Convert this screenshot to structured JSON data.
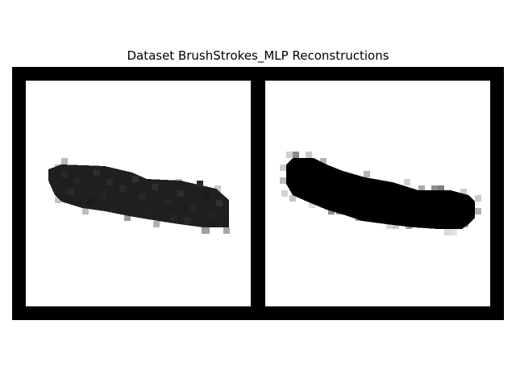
{
  "figure": {
    "title": "Dataset BrushStrokes_MLP Reconstructions"
  },
  "panels": [
    {
      "id": "original"
    },
    {
      "id": "reconstruction"
    }
  ],
  "colors": {
    "grid_border": "#000000",
    "background": "#ffffff",
    "stroke_original": "#1f1f1f",
    "stroke_reconstruction": "#000000"
  }
}
